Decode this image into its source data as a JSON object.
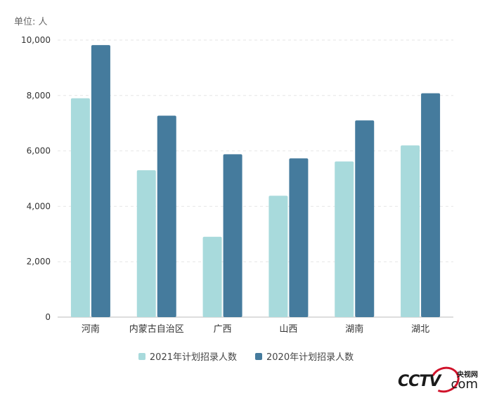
{
  "unit_label": "单位: 人",
  "watermark": {
    "name": "CCTV",
    "cn": "央视网",
    "suffix": "com"
  },
  "colors": {
    "series_2021": "#a8dadc",
    "series_2020": "#457b9d",
    "grid": "#e6e6e6",
    "axis_text": "#333333"
  },
  "chart_data": {
    "type": "bar",
    "categories": [
      "河南",
      "内蒙古自治区",
      "广西",
      "山西",
      "湖南",
      "湖北"
    ],
    "series": [
      {
        "name": "2021年计划招录人数",
        "values": [
          7900,
          5300,
          2900,
          4380,
          5620,
          6200
        ]
      },
      {
        "name": "2020年计划招录人数",
        "values": [
          9820,
          7270,
          5880,
          5730,
          7100,
          8080
        ]
      }
    ],
    "ylim": [
      0,
      10000
    ],
    "yticks": [
      0,
      2000,
      4000,
      6000,
      8000,
      10000
    ],
    "ytick_labels": [
      "0",
      "2,000",
      "4,000",
      "6,000",
      "8,000",
      "10,000"
    ],
    "grid": true,
    "legend": "bottom-center",
    "title": "",
    "xlabel": "",
    "ylabel": ""
  }
}
